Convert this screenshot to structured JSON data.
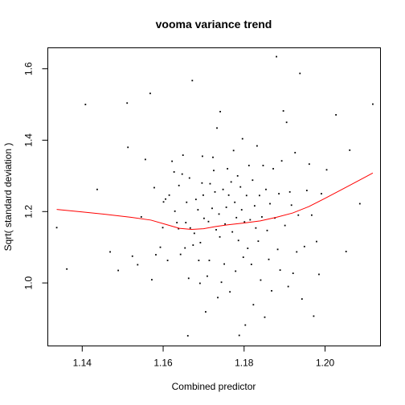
{
  "chart_data": {
    "type": "scatter",
    "title": "vooma variance trend",
    "xlabel": "Combined predictor",
    "ylabel": "Sqrt( standard deviation )",
    "xlim": [
      1.1315,
      1.2137
    ],
    "ylim": [
      0.8235,
      1.6588
    ],
    "x_ticks": [
      1.14,
      1.16,
      1.18,
      1.2
    ],
    "x_tick_labels": [
      "1.14",
      "1.16",
      "1.18",
      "1.20"
    ],
    "y_ticks": [
      1.0,
      1.2,
      1.4,
      1.6
    ],
    "y_tick_labels": [
      "1.0",
      "1.2",
      "1.4",
      "1.6"
    ],
    "grid": false,
    "legend": "none",
    "point_color": "#000000",
    "trend_color": "#ff0000",
    "points": [
      [
        1.1337,
        1.155
      ],
      [
        1.1362,
        1.039
      ],
      [
        1.1408,
        1.5
      ],
      [
        1.1437,
        1.262
      ],
      [
        1.1469,
        1.087
      ],
      [
        1.1489,
        1.035
      ],
      [
        1.1511,
        1.504
      ],
      [
        1.1513,
        1.38
      ],
      [
        1.1524,
        1.075
      ],
      [
        1.1537,
        1.051
      ],
      [
        1.1546,
        1.185
      ],
      [
        1.1556,
        1.346
      ],
      [
        1.1568,
        1.531
      ],
      [
        1.1572,
        1.009
      ],
      [
        1.1578,
        1.267
      ],
      [
        1.1582,
        1.079
      ],
      [
        1.1593,
        1.1
      ],
      [
        1.1599,
        1.155
      ],
      [
        1.1601,
        1.227
      ],
      [
        1.1606,
        1.235
      ],
      [
        1.1611,
        1.063
      ],
      [
        1.1615,
        1.246
      ],
      [
        1.1622,
        1.341
      ],
      [
        1.1627,
        1.311
      ],
      [
        1.1629,
        1.201
      ],
      [
        1.1634,
        1.169
      ],
      [
        1.1638,
        1.152
      ],
      [
        1.1639,
        1.273
      ],
      [
        1.1643,
        1.08
      ],
      [
        1.1647,
        1.305
      ],
      [
        1.1649,
        1.358
      ],
      [
        1.1654,
        1.098
      ],
      [
        1.1656,
        1.169
      ],
      [
        1.1658,
        1.226
      ],
      [
        1.1661,
        0.852
      ],
      [
        1.1663,
        1.013
      ],
      [
        1.1665,
        1.294
      ],
      [
        1.1667,
        1.154
      ],
      [
        1.1672,
        1.567
      ],
      [
        1.1674,
        1.106
      ],
      [
        1.1677,
        1.139
      ],
      [
        1.1681,
        1.234
      ],
      [
        1.1686,
        1.205
      ],
      [
        1.1688,
        1.063
      ],
      [
        1.1691,
        0.999
      ],
      [
        1.1692,
        1.113
      ],
      [
        1.1696,
        1.28
      ],
      [
        1.1697,
        1.355
      ],
      [
        1.1699,
        1.246
      ],
      [
        1.1701,
        1.181
      ],
      [
        1.1705,
        0.919
      ],
      [
        1.1709,
        1.019
      ],
      [
        1.1712,
        1.172
      ],
      [
        1.1714,
        1.063
      ],
      [
        1.1716,
        1.278
      ],
      [
        1.1721,
        1.209
      ],
      [
        1.1723,
        1.352
      ],
      [
        1.1725,
        1.315
      ],
      [
        1.1728,
        1.255
      ],
      [
        1.1731,
        1.149
      ],
      [
        1.1733,
        1.434
      ],
      [
        1.1735,
        0.959
      ],
      [
        1.1738,
        1.193
      ],
      [
        1.174,
        1.129
      ],
      [
        1.1741,
        1.48
      ],
      [
        1.1744,
        1.002
      ],
      [
        1.1748,
        1.262
      ],
      [
        1.1751,
        1.053
      ],
      [
        1.1753,
        1.165
      ],
      [
        1.1756,
        1.212
      ],
      [
        1.1759,
        1.32
      ],
      [
        1.1762,
        1.246
      ],
      [
        1.1765,
        0.975
      ],
      [
        1.1768,
        1.283
      ],
      [
        1.1771,
        1.143
      ],
      [
        1.1774,
        1.371
      ],
      [
        1.1777,
        1.226
      ],
      [
        1.1779,
        1.033
      ],
      [
        1.1781,
        1.183
      ],
      [
        1.1784,
        1.3
      ],
      [
        1.1786,
        1.119
      ],
      [
        1.1788,
        0.853
      ],
      [
        1.1791,
        1.269
      ],
      [
        1.1794,
        1.205
      ],
      [
        1.1796,
        1.404
      ],
      [
        1.1798,
        1.072
      ],
      [
        1.1801,
        1.171
      ],
      [
        1.1803,
        0.882
      ],
      [
        1.1806,
        1.245
      ],
      [
        1.1809,
        1.097
      ],
      [
        1.1812,
        1.329
      ],
      [
        1.1815,
        1.177
      ],
      [
        1.1818,
        1.052
      ],
      [
        1.1821,
        1.288
      ],
      [
        1.1823,
        0.939
      ],
      [
        1.1826,
        1.216
      ],
      [
        1.1829,
        1.154
      ],
      [
        1.1832,
        1.384
      ],
      [
        1.1835,
        1.117
      ],
      [
        1.1838,
        1.245
      ],
      [
        1.1841,
        1.008
      ],
      [
        1.1844,
        1.185
      ],
      [
        1.1847,
        1.329
      ],
      [
        1.1851,
        0.904
      ],
      [
        1.1854,
        1.262
      ],
      [
        1.1857,
        1.147
      ],
      [
        1.1861,
        1.066
      ],
      [
        1.1864,
        1.222
      ],
      [
        1.1868,
        0.978
      ],
      [
        1.1872,
        1.32
      ],
      [
        1.1876,
        1.182
      ],
      [
        1.188,
        1.634
      ],
      [
        1.1883,
        1.094
      ],
      [
        1.1886,
        1.25
      ],
      [
        1.1889,
        1.036
      ],
      [
        1.1893,
        1.342
      ],
      [
        1.1897,
        1.482
      ],
      [
        1.1901,
        1.161
      ],
      [
        1.1905,
        1.45
      ],
      [
        1.1909,
        0.99
      ],
      [
        1.1913,
        1.255
      ],
      [
        1.1917,
        1.218
      ],
      [
        1.1921,
        1.027
      ],
      [
        1.1926,
        1.365
      ],
      [
        1.193,
        1.087
      ],
      [
        1.1934,
        1.19
      ],
      [
        1.1938,
        1.587
      ],
      [
        1.1943,
        0.955
      ],
      [
        1.1949,
        1.102
      ],
      [
        1.1955,
        1.259
      ],
      [
        1.1961,
        1.333
      ],
      [
        1.1967,
        1.19
      ],
      [
        1.1972,
        0.907
      ],
      [
        1.1979,
        1.116
      ],
      [
        1.1985,
        1.024
      ],
      [
        1.1991,
        1.25
      ],
      [
        1.2004,
        1.317
      ],
      [
        1.2027,
        1.471
      ],
      [
        1.2052,
        1.088
      ],
      [
        1.2061,
        1.372
      ],
      [
        1.2086,
        1.222
      ],
      [
        1.2118,
        1.501
      ]
    ],
    "trend": [
      [
        1.1337,
        1.206
      ],
      [
        1.14,
        1.199
      ],
      [
        1.146,
        1.192
      ],
      [
        1.152,
        1.184
      ],
      [
        1.157,
        1.176
      ],
      [
        1.161,
        1.163
      ],
      [
        1.164,
        1.153
      ],
      [
        1.167,
        1.15
      ],
      [
        1.17,
        1.152
      ],
      [
        1.173,
        1.158
      ],
      [
        1.176,
        1.163
      ],
      [
        1.18,
        1.168
      ],
      [
        1.184,
        1.174
      ],
      [
        1.188,
        1.184
      ],
      [
        1.192,
        1.196
      ],
      [
        1.196,
        1.214
      ],
      [
        1.2,
        1.237
      ],
      [
        1.205,
        1.267
      ],
      [
        1.21,
        1.297
      ],
      [
        1.2118,
        1.308
      ]
    ]
  }
}
